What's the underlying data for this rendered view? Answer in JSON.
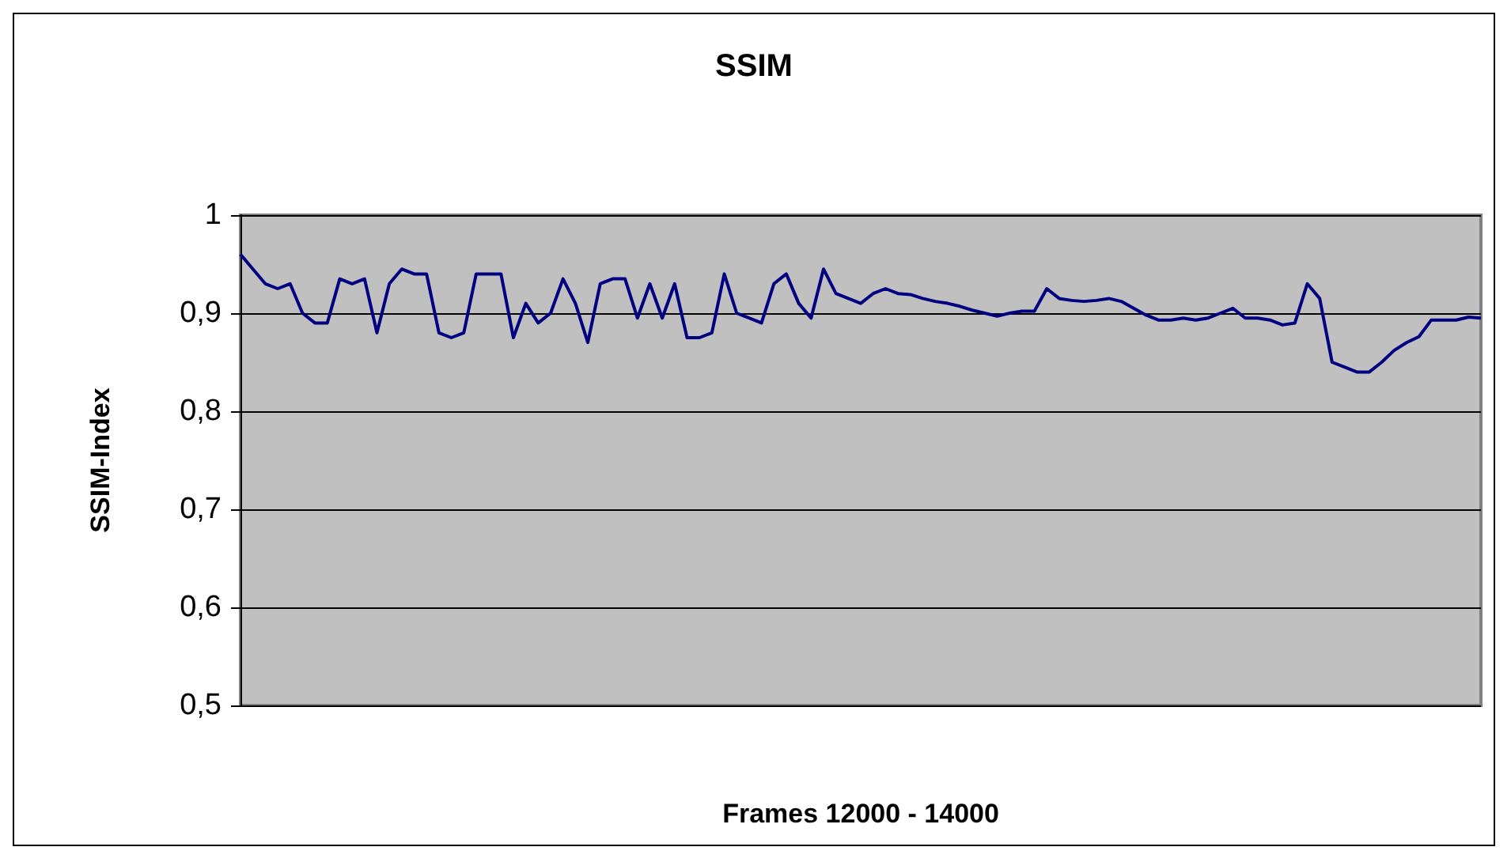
{
  "chart_data": {
    "type": "line",
    "title": "SSIM",
    "xlabel": "Frames 12000 - 14000",
    "ylabel": "SSIM-Index",
    "categories": [
      null,
      null,
      null,
      null,
      null,
      null,
      null,
      null,
      null,
      null,
      null,
      null,
      null,
      null,
      null,
      null,
      null,
      null,
      null,
      null,
      null,
      null,
      null,
      null,
      null,
      null,
      null,
      null,
      null,
      null,
      null,
      null,
      null,
      null,
      null,
      null,
      null,
      null,
      null,
      null,
      null,
      null,
      null,
      null,
      null,
      null,
      null,
      null,
      null,
      null,
      null,
      null,
      null,
      null,
      null,
      null,
      null,
      null,
      null,
      null,
      null,
      null,
      null,
      null,
      null,
      null,
      null,
      null,
      null,
      null,
      null,
      null,
      null,
      null,
      null,
      null,
      null,
      null,
      null,
      null,
      null,
      null,
      null,
      null,
      null,
      null,
      null,
      null,
      null,
      null,
      null,
      null,
      null,
      null,
      null,
      null,
      null,
      null,
      null,
      null,
      null
    ],
    "series": [
      {
        "color": "#000080",
        "values": [
          0.96,
          0.945,
          0.93,
          0.925,
          0.93,
          0.9,
          0.89,
          0.89,
          0.935,
          0.93,
          0.935,
          0.88,
          0.93,
          0.945,
          0.94,
          0.94,
          0.88,
          0.875,
          0.88,
          0.94,
          0.94,
          0.94,
          0.875,
          0.91,
          0.89,
          0.9,
          0.935,
          0.91,
          0.87,
          0.93,
          0.935,
          0.935,
          0.895,
          0.93,
          0.895,
          0.93,
          0.875,
          0.875,
          0.88,
          0.94,
          0.9,
          0.895,
          0.89,
          0.93,
          0.94,
          0.91,
          0.895,
          0.945,
          0.92,
          0.915,
          0.91,
          0.92,
          0.925,
          0.92,
          0.919,
          0.915,
          0.912,
          0.91,
          0.907,
          0.903,
          0.9,
          0.897,
          0.9,
          0.902,
          0.902,
          0.925,
          0.915,
          0.913,
          0.912,
          0.913,
          0.915,
          0.912,
          0.905,
          0.898,
          0.893,
          0.893,
          0.895,
          0.893,
          0.895,
          0.9,
          0.905,
          0.895,
          0.895,
          0.893,
          0.888,
          0.89,
          0.93,
          0.915,
          0.85,
          0.845,
          0.84,
          0.84,
          0.85,
          0.862,
          0.87,
          0.876,
          0.893,
          0.893,
          0.893,
          0.896,
          0.895
        ]
      }
    ],
    "ylim": [
      0.5,
      1
    ],
    "yticks": [
      {
        "value": 0.5,
        "label": "0,5"
      },
      {
        "value": 0.6,
        "label": "0,6"
      },
      {
        "value": 0.7,
        "label": "0,7"
      },
      {
        "value": 0.8,
        "label": "0,8"
      },
      {
        "value": 0.9,
        "label": "0,9"
      },
      1
    ],
    "grid": "y",
    "line_style": "solid",
    "tick_labels": "y"
  }
}
